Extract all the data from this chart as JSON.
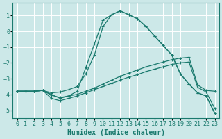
{
  "xlabel": "Humidex (Indice chaleur)",
  "bg_color": "#cce8e8",
  "grid_color": "#ffffff",
  "line_color": "#1a7a6e",
  "xlim": [
    -0.5,
    23.5
  ],
  "ylim": [
    -5.5,
    1.8
  ],
  "xticks": [
    0,
    1,
    2,
    3,
    4,
    5,
    6,
    7,
    8,
    9,
    10,
    11,
    12,
    13,
    14,
    15,
    16,
    17,
    18,
    19,
    20,
    21,
    22,
    23
  ],
  "yticks": [
    -5,
    -4,
    -3,
    -2,
    -1,
    0,
    1
  ],
  "line_main_x": [
    0,
    1,
    2,
    3,
    4,
    5,
    6,
    7,
    8,
    9,
    10,
    11,
    12,
    13,
    14,
    15,
    16,
    17,
    18,
    19,
    20,
    21,
    22,
    23
  ],
  "line_main_y": [
    -3.8,
    -3.8,
    -3.8,
    -3.75,
    -3.9,
    -3.85,
    -3.7,
    -3.5,
    -2.7,
    -1.5,
    0.3,
    1.05,
    1.3,
    1.05,
    0.8,
    0.3,
    -0.3,
    -0.9,
    -1.5,
    -2.7,
    -3.35,
    -3.9,
    -4.1,
    -5.2
  ],
  "line2_x": [
    0,
    1,
    2,
    3,
    4,
    5,
    6,
    7,
    8,
    9,
    10,
    11,
    12,
    13,
    14,
    15,
    16,
    17,
    18,
    19,
    20,
    21,
    22,
    23
  ],
  "line2_y": [
    -3.8,
    -3.8,
    -3.8,
    -3.75,
    -4.0,
    -4.25,
    -4.1,
    -3.8,
    -2.3,
    -0.8,
    0.7,
    1.05,
    1.3,
    1.05,
    0.8,
    0.3,
    -0.3,
    -0.9,
    -1.5,
    -2.7,
    -3.35,
    -3.9,
    -4.1,
    -5.2
  ],
  "line3_x": [
    0,
    1,
    2,
    3,
    4,
    5,
    6,
    7,
    8,
    9,
    10,
    11,
    12,
    13,
    14,
    15,
    16,
    17,
    18,
    19,
    20,
    21,
    22,
    23
  ],
  "line3_y": [
    -3.8,
    -3.8,
    -3.8,
    -3.75,
    -4.05,
    -4.2,
    -4.1,
    -4.0,
    -3.8,
    -3.6,
    -3.35,
    -3.1,
    -2.85,
    -2.65,
    -2.45,
    -2.25,
    -2.1,
    -1.95,
    -1.8,
    -1.7,
    -1.65,
    -3.4,
    -3.75,
    -3.8
  ],
  "line4_x": [
    0,
    1,
    2,
    3,
    4,
    5,
    6,
    7,
    8,
    9,
    10,
    11,
    12,
    13,
    14,
    15,
    16,
    17,
    18,
    19,
    20,
    21,
    22,
    23
  ],
  "line4_y": [
    -3.8,
    -3.8,
    -3.8,
    -3.75,
    -4.25,
    -4.4,
    -4.25,
    -4.1,
    -3.9,
    -3.7,
    -3.5,
    -3.3,
    -3.1,
    -2.9,
    -2.75,
    -2.55,
    -2.4,
    -2.25,
    -2.1,
    -2.0,
    -1.95,
    -3.55,
    -3.85,
    -4.9
  ]
}
